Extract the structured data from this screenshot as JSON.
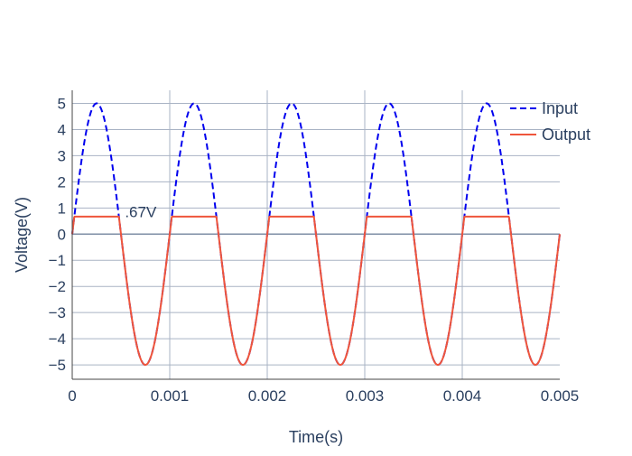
{
  "chart_data": {
    "type": "line",
    "xlabel": "Time(s)",
    "ylabel": "Voltage(V)",
    "xlim": [
      0,
      0.005
    ],
    "ylim": [
      -5.55,
      5.5
    ],
    "x_ticks": [
      0,
      0.001,
      0.002,
      0.003,
      0.004,
      0.005
    ],
    "x_tick_labels": [
      "0",
      "0.001",
      "0.002",
      "0.003",
      "0.004",
      "0.005"
    ],
    "y_ticks": [
      5,
      4,
      3,
      2,
      1,
      0,
      -1,
      -2,
      -3,
      -4,
      -5
    ],
    "y_tick_labels": [
      "5",
      "4",
      "3",
      "2",
      "1",
      "0",
      "−1",
      "−2",
      "−3",
      "−4",
      "−5"
    ],
    "grid": true,
    "legend_position": "top-right",
    "frequency_hz": 1000,
    "series": [
      {
        "name": "Input",
        "color": "#0000ee",
        "dash": "dash",
        "amplitude": 5,
        "description_values": "5*sin(2*pi*1000*t), t from 0 to 0.005 s"
      },
      {
        "name": "Output",
        "color": "#ef553b",
        "dash": "solid",
        "clip_level": 0.67,
        "amplitude": 5
      }
    ],
    "annotations": [
      {
        "text": ".67V",
        "x": 0.00054,
        "y": 0.85
      }
    ]
  }
}
